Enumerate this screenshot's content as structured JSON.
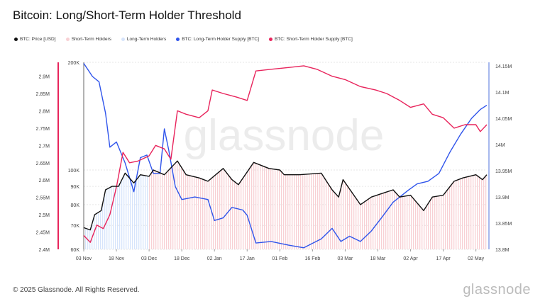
{
  "title": "Bitcoin: Long/Short-Term Holder Threshold",
  "footer": "© 2025 Glassnode. All Rights Reserved.",
  "logo": "glassnode",
  "watermark": "glassnode",
  "chart_data": {
    "type": "line",
    "title": "Bitcoin: Long/Short-Term Holder Threshold",
    "legend_placement": "top-left",
    "grid": true,
    "legend": [
      {
        "name": "BTC: Price [USD]",
        "color": "#111111"
      },
      {
        "name": "Short-Term Holders",
        "color": "#f8d0d4"
      },
      {
        "name": "Long-Term Holders",
        "color": "#d6e4fb"
      },
      {
        "name": "BTC: Long-Term Holder Supply [BTC]",
        "color": "#2f54eb"
      },
      {
        "name": "BTC: Short-Term Holder Supply [BTC]",
        "color": "#e8245c"
      }
    ],
    "x_ticks": [
      "03 Nov",
      "18 Nov",
      "03 Dec",
      "18 Dec",
      "02 Jan",
      "17 Jan",
      "01 Feb",
      "16 Feb",
      "03 Mar",
      "18 Mar",
      "02 Apr",
      "17 Apr",
      "02 May"
    ],
    "xlim": [
      "2024-11-03",
      "2025-05-07"
    ],
    "axes": {
      "sth_supply": {
        "side": "left-outer",
        "ticks": [
          "2.4M",
          "2.45M",
          "2.5M",
          "2.55M",
          "2.6M",
          "2.65M",
          "2.7M",
          "2.75M",
          "2.8M",
          "2.85M",
          "2.9M"
        ],
        "ylim": [
          2.4,
          2.94
        ],
        "unit": "M",
        "color": "#e8245c"
      },
      "price": {
        "side": "left-inner",
        "scale": "log",
        "ticks": [
          "60K",
          "70K",
          "80K",
          "90K",
          "100K",
          "200K"
        ],
        "tick_values": [
          60,
          70,
          80,
          90,
          100,
          200
        ],
        "ylim": [
          60,
          200
        ],
        "unit": "K"
      },
      "lth_supply": {
        "side": "right",
        "ticks": [
          "13.8M",
          "13.85M",
          "13.9M",
          "13.95M",
          "14M",
          "14.05M",
          "14.1M",
          "14.15M"
        ],
        "ylim": [
          13.8,
          14.157
        ],
        "unit": "M",
        "color": "#2f54eb"
      }
    },
    "regions": [
      {
        "name": "Long-Term Holders",
        "from": "2024-11-03",
        "to": "2024-12-03",
        "color": "#d6e4fb"
      },
      {
        "name": "Short-Term Holders",
        "from": "2024-12-03",
        "to": "2025-05-07",
        "color": "#f8d0d4"
      }
    ],
    "series": [
      {
        "name": "BTC: Price [USD]",
        "axis": "price",
        "color": "#111111",
        "unit": "K",
        "points": [
          [
            "2024-11-03",
            69
          ],
          [
            "2024-11-06",
            68
          ],
          [
            "2024-11-08",
            75
          ],
          [
            "2024-11-11",
            77
          ],
          [
            "2024-11-13",
            88
          ],
          [
            "2024-11-16",
            90
          ],
          [
            "2024-11-19",
            90
          ],
          [
            "2024-11-22",
            98
          ],
          [
            "2024-11-26",
            92
          ],
          [
            "2024-11-29",
            97
          ],
          [
            "2024-12-03",
            96
          ],
          [
            "2024-12-05",
            100
          ],
          [
            "2024-12-10",
            97
          ],
          [
            "2024-12-16",
            106
          ],
          [
            "2024-12-20",
            97
          ],
          [
            "2024-12-26",
            95
          ],
          [
            "2024-12-30",
            93
          ],
          [
            "2025-01-06",
            101
          ],
          [
            "2025-01-10",
            94
          ],
          [
            "2025-01-13",
            91
          ],
          [
            "2025-01-20",
            105
          ],
          [
            "2025-01-27",
            101
          ],
          [
            "2025-02-01",
            100
          ],
          [
            "2025-02-03",
            97
          ],
          [
            "2025-02-10",
            97
          ],
          [
            "2025-02-20",
            98
          ],
          [
            "2025-02-25",
            88
          ],
          [
            "2025-02-28",
            84
          ],
          [
            "2025-03-02",
            94
          ],
          [
            "2025-03-10",
            80
          ],
          [
            "2025-03-15",
            84
          ],
          [
            "2025-03-20",
            86
          ],
          [
            "2025-03-25",
            88
          ],
          [
            "2025-03-28",
            84
          ],
          [
            "2025-04-02",
            85
          ],
          [
            "2025-04-08",
            77
          ],
          [
            "2025-04-12",
            84
          ],
          [
            "2025-04-17",
            85
          ],
          [
            "2025-04-22",
            93
          ],
          [
            "2025-04-26",
            95
          ],
          [
            "2025-05-02",
            97
          ],
          [
            "2025-05-05",
            94
          ],
          [
            "2025-05-07",
            97
          ]
        ]
      },
      {
        "name": "BTC: Long-Term Holder Supply [BTC]",
        "axis": "lth_supply",
        "color": "#2f54eb",
        "unit": "M",
        "points": [
          [
            "2024-11-03",
            14.155
          ],
          [
            "2024-11-07",
            14.13
          ],
          [
            "2024-11-10",
            14.12
          ],
          [
            "2024-11-13",
            14.06
          ],
          [
            "2024-11-15",
            13.995
          ],
          [
            "2024-11-18",
            14.005
          ],
          [
            "2024-11-22",
            13.965
          ],
          [
            "2024-11-26",
            13.91
          ],
          [
            "2024-11-29",
            13.975
          ],
          [
            "2024-12-02",
            13.98
          ],
          [
            "2024-12-05",
            13.945
          ],
          [
            "2024-12-08",
            13.945
          ],
          [
            "2024-12-10",
            14.03
          ],
          [
            "2024-12-12",
            13.99
          ],
          [
            "2024-12-15",
            13.92
          ],
          [
            "2024-12-18",
            13.895
          ],
          [
            "2024-12-24",
            13.9
          ],
          [
            "2024-12-30",
            13.895
          ],
          [
            "2025-01-02",
            13.855
          ],
          [
            "2025-01-06",
            13.86
          ],
          [
            "2025-01-10",
            13.88
          ],
          [
            "2025-01-15",
            13.875
          ],
          [
            "2025-01-17",
            13.865
          ],
          [
            "2025-01-21",
            13.812
          ],
          [
            "2025-01-28",
            13.815
          ],
          [
            "2025-02-05",
            13.808
          ],
          [
            "2025-02-12",
            13.803
          ],
          [
            "2025-02-20",
            13.82
          ],
          [
            "2025-02-25",
            13.84
          ],
          [
            "2025-03-01",
            13.815
          ],
          [
            "2025-03-05",
            13.825
          ],
          [
            "2025-03-10",
            13.815
          ],
          [
            "2025-03-15",
            13.835
          ],
          [
            "2025-03-20",
            13.862
          ],
          [
            "2025-03-25",
            13.89
          ],
          [
            "2025-04-01",
            13.913
          ],
          [
            "2025-04-05",
            13.925
          ],
          [
            "2025-04-10",
            13.93
          ],
          [
            "2025-04-15",
            13.945
          ],
          [
            "2025-04-20",
            13.985
          ],
          [
            "2025-04-25",
            14.02
          ],
          [
            "2025-04-30",
            14.05
          ],
          [
            "2025-05-04",
            14.067
          ],
          [
            "2025-05-07",
            14.075
          ]
        ]
      },
      {
        "name": "BTC: Short-Term Holder Supply [BTC]",
        "axis": "sth_supply",
        "color": "#e8245c",
        "unit": "M",
        "points": [
          [
            "2024-11-03",
            2.44
          ],
          [
            "2024-11-06",
            2.42
          ],
          [
            "2024-11-09",
            2.47
          ],
          [
            "2024-11-12",
            2.46
          ],
          [
            "2024-11-15",
            2.5
          ],
          [
            "2024-11-18",
            2.58
          ],
          [
            "2024-11-21",
            2.68
          ],
          [
            "2024-11-24",
            2.65
          ],
          [
            "2024-11-28",
            2.655
          ],
          [
            "2024-12-03",
            2.67
          ],
          [
            "2024-12-06",
            2.7
          ],
          [
            "2024-12-10",
            2.69
          ],
          [
            "2024-12-13",
            2.66
          ],
          [
            "2024-12-16",
            2.8
          ],
          [
            "2024-12-20",
            2.79
          ],
          [
            "2024-12-26",
            2.78
          ],
          [
            "2024-12-30",
            2.8
          ],
          [
            "2025-01-01",
            2.86
          ],
          [
            "2025-01-06",
            2.85
          ],
          [
            "2025-01-12",
            2.84
          ],
          [
            "2025-01-17",
            2.83
          ],
          [
            "2025-01-21",
            2.915
          ],
          [
            "2025-01-28",
            2.92
          ],
          [
            "2025-02-05",
            2.925
          ],
          [
            "2025-02-12",
            2.93
          ],
          [
            "2025-02-18",
            2.92
          ],
          [
            "2025-02-25",
            2.9
          ],
          [
            "2025-03-03",
            2.89
          ],
          [
            "2025-03-10",
            2.87
          ],
          [
            "2025-03-17",
            2.86
          ],
          [
            "2025-03-22",
            2.85
          ],
          [
            "2025-03-28",
            2.83
          ],
          [
            "2025-04-02",
            2.81
          ],
          [
            "2025-04-08",
            2.82
          ],
          [
            "2025-04-12",
            2.79
          ],
          [
            "2025-04-17",
            2.78
          ],
          [
            "2025-04-22",
            2.75
          ],
          [
            "2025-04-27",
            2.76
          ],
          [
            "2025-05-02",
            2.76
          ],
          [
            "2025-05-04",
            2.74
          ],
          [
            "2025-05-07",
            2.76
          ]
        ]
      }
    ]
  }
}
